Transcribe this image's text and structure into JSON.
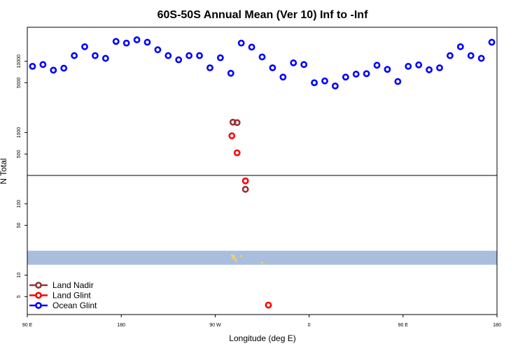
{
  "chart_data": {
    "type": "scatter",
    "title": "60S-50S Annual Mean (Ver 10)   Inf to -Inf",
    "xlabel": "Longitude (deg E)",
    "ylabel": "N Total",
    "x_scale": "linear",
    "y_scale": "log",
    "xlim": [
      -180,
      270
    ],
    "ylim": [
      2.8,
      30000
    ],
    "grid": false,
    "legend_position": "bottom-left",
    "x_ticks": [
      {
        "value": -180,
        "label": "90 E"
      },
      {
        "value": -90,
        "label": "180"
      },
      {
        "value": 0,
        "label": "90 W"
      },
      {
        "value": 90,
        "label": "0"
      },
      {
        "value": 180,
        "label": "90 E"
      },
      {
        "value": 270,
        "label": "180"
      }
    ],
    "y_ticks": [
      {
        "value": 5,
        "label": "5"
      },
      {
        "value": 10,
        "label": "10"
      },
      {
        "value": 50,
        "label": "50"
      },
      {
        "value": 100,
        "label": "100"
      },
      {
        "value": 500,
        "label": "500"
      },
      {
        "value": 1000,
        "label": "1000"
      },
      {
        "value": 5000,
        "label": "5000"
      },
      {
        "value": 10000,
        "label": "10000"
      }
    ],
    "series": [
      {
        "name": "Land Nadir",
        "color": "#993333",
        "x": [
          17,
          21,
          29
        ],
        "y": [
          1400,
          1380,
          160
        ]
      },
      {
        "name": "Land Glint",
        "color": "#ff0000",
        "x": [
          16,
          21,
          29,
          51
        ],
        "y": [
          900,
          520,
          210,
          3.8
        ]
      },
      {
        "name": "Ocean Glint",
        "color": "#0000ff",
        "x": [
          -175,
          -165,
          -155,
          -145,
          -135,
          -125,
          -115,
          -105,
          -95,
          -85,
          -75,
          -65,
          -55,
          -45,
          -35,
          -25,
          -15,
          -5,
          5,
          15,
          25,
          35,
          45,
          55,
          65,
          75,
          85,
          95,
          105,
          115,
          125,
          135,
          145,
          155,
          165,
          175,
          185,
          195,
          205,
          215,
          225,
          235,
          245,
          255,
          265
        ],
        "y": [
          8500,
          9000,
          7500,
          8000,
          12000,
          16000,
          12000,
          11000,
          19000,
          18000,
          20000,
          18500,
          14500,
          12000,
          10500,
          12000,
          12000,
          8100,
          11200,
          6800,
          18000,
          15800,
          11500,
          8100,
          6000,
          9500,
          9000,
          5000,
          5300,
          4500,
          6000,
          6600,
          6700,
          8800,
          7700,
          5200,
          8500,
          8900,
          7600,
          8100,
          12000,
          16000,
          12000,
          11000,
          18500
        ]
      }
    ],
    "overlay_band": {
      "color": "#a8bedc",
      "y_range": [
        14,
        22
      ]
    },
    "overlay_marks": {
      "color": "#f2d06b",
      "x": [
        16,
        17,
        18,
        19,
        17,
        20,
        25,
        45
      ],
      "y": [
        19,
        18,
        18.5,
        17,
        17.5,
        16,
        18.5,
        15
      ]
    }
  }
}
